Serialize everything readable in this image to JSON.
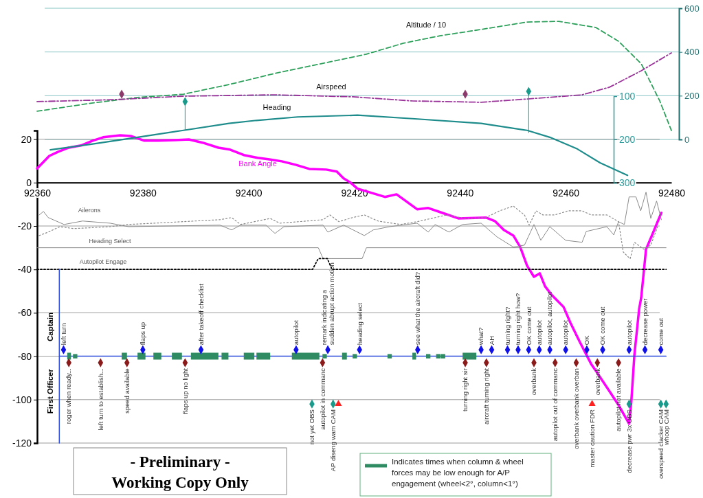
{
  "chart_data": [
    {
      "type": "line",
      "xlim": [
        92360,
        92480
      ],
      "ylim": [
        0,
        600
      ],
      "yticks": [
        0,
        200,
        400,
        600
      ],
      "grid": true,
      "tick_labels": "y",
      "series": [
        {
          "name": "Altitude / 10",
          "color": "#2ca05a",
          "line_style": "dashed",
          "x": [
            92360,
            92370.3,
            92379,
            92387.7,
            92396.3,
            92405,
            92413.7,
            92422.3,
            92429.3,
            92436.2,
            92444,
            92452.7,
            92458.7,
            92465.7,
            92470,
            92474.3,
            92477.8,
            92480
          ],
          "values": [
            129,
            166,
            192,
            207,
            251,
            302,
            346,
            390,
            440,
            474,
            503,
            537,
            540,
            512,
            449,
            346,
            176,
            41
          ]
        },
        {
          "name": "Airspeed",
          "color": "#993399",
          "line_style": "dashed",
          "x": [
            92360,
            92374.7,
            92387.7,
            92405,
            92419.7,
            92431,
            92444,
            92454.4,
            92463.1,
            92468.3,
            92474.3,
            92480
          ],
          "values": [
            173,
            182,
            198,
            204,
            195,
            176,
            170,
            188,
            204,
            239,
            314,
            396
          ]
        },
        {
          "color": "#1a9a8a",
          "x": [
            92388,
            92388,
            92420,
            92453,
            92453
          ],
          "values": [
            173,
            44,
            null,
            220,
            31
          ]
        },
        {
          "type": "scatter",
          "marker": "diamond",
          "color": "#8b3a6b",
          "x": [
            92376,
            92441
          ],
          "values": [
            207,
            207
          ]
        },
        {
          "type": "scatter",
          "marker": "diamond",
          "color": "#1a9a8a",
          "x": [
            92388,
            92453
          ],
          "values": [
            173,
            220
          ]
        }
      ]
    },
    {
      "type": "line",
      "xlim": [
        92360,
        92480
      ],
      "ylim": [
        300,
        100
      ],
      "yticks": [
        100,
        200,
        300
      ],
      "tick_labels": "y",
      "series": [
        {
          "name": "Heading",
          "color": "#1f8c8c",
          "x": [
            92362.5,
            92370.3,
            92379,
            92387.7,
            92396.3,
            92401.5,
            92409.3,
            92420.6,
            92431,
            92444,
            92452.7,
            92457,
            92462.2,
            92466.5,
            92471.7
          ],
          "values": [
            224,
            211,
            195,
            179,
            163,
            156,
            148,
            144,
            152,
            163,
            179,
            195,
            222,
            254,
            283
          ]
        }
      ]
    },
    {
      "type": "line",
      "xlim": [
        92360,
        92480
      ],
      "xticks": [
        92360,
        92380,
        92400,
        92420,
        92440,
        92460,
        92480
      ],
      "ylim": [
        -120,
        24
      ],
      "yticks": [
        -120,
        -100,
        -80,
        -60,
        -40,
        -20,
        0,
        20
      ],
      "grid": true,
      "legend": "bottom",
      "series": [
        {
          "name": "Bank Angle",
          "color": "#ff00ff",
          "x": [
            92360,
            92361.2,
            92362.3,
            92364,
            92366,
            92368.3,
            92370.5,
            92372.5,
            92375.7,
            92377.7,
            92380.3,
            92382.9,
            92386.1,
            92388.7,
            92391.3,
            92394.3,
            92396.5,
            92399.1,
            92401.7,
            92403.7,
            92406.3,
            92408.9,
            92411.5,
            92414.7,
            92416.7,
            92418,
            92419.3,
            92420.6,
            92423.2,
            92425.8,
            92428,
            92431.9,
            92434,
            92436.6,
            92439.7,
            92444.9,
            92446.6,
            92448.3,
            92450.1,
            92451.4,
            92452.7,
            92454,
            92455.1,
            92456.1,
            92457.4,
            92459.6,
            92460.9,
            92462.6,
            92464.8,
            92465.7,
            92468.3,
            92470,
            92472,
            92472.4,
            92473,
            92473.9,
            92474.3,
            92475.2,
            92476.1,
            92478.1
          ],
          "values": [
            6.5,
            9.5,
            12.3,
            14.2,
            16.1,
            17.1,
            19.3,
            20.9,
            21.8,
            21.5,
            19.3,
            19.3,
            19.6,
            19.9,
            18.4,
            16.1,
            15.2,
            12.7,
            11.4,
            10.8,
            9.8,
            8.2,
            6.3,
            6.0,
            5.1,
            1.9,
            0,
            -2.8,
            -4.7,
            -6.6,
            -5.4,
            -12.3,
            -11.7,
            -13.9,
            -16.5,
            -16.1,
            -17.7,
            -21.8,
            -24.4,
            -29.7,
            -38.3,
            -43.4,
            -41.8,
            -47.8,
            -51.9,
            -57.3,
            -64.6,
            -73.1,
            -83.5,
            -86.7,
            -96.2,
            -102.5,
            -111.1,
            -101.6,
            -79.4,
            -58.2,
            -52.8,
            -30.7,
            -25.6,
            -13.9
          ]
        },
        {
          "name": "Ailerons",
          "color": "#8a8a8a",
          "x": [
            92360.4,
            92361.2,
            92362.1,
            92365.1,
            92368.6,
            92373.8,
            92377.3,
            92394.6,
            92396.8,
            92398.5,
            92403.3,
            92405,
            92406.7,
            92414.1,
            92415,
            92418,
            92421.9,
            92423.6,
            92426.7,
            92431.9,
            92434,
            92435.3,
            92437.9,
            92440.5,
            92444,
            92447,
            92450.1,
            92452.2,
            92454,
            92455.3,
            92457,
            92460,
            92463.1,
            92463.9,
            92467.8,
            92469.1,
            92470,
            92471.1,
            92472,
            92473.3,
            92474.2,
            92475.2,
            92476.1,
            92477.2,
            92478.1
          ],
          "values": [
            -14.9,
            -13.3,
            -16.1,
            -19.3,
            -17.7,
            -18.7,
            -20.3,
            -19.6,
            -21.8,
            -19.6,
            -19.6,
            -23.4,
            -20.3,
            -19.6,
            -22.8,
            -19.6,
            -24.4,
            -21.8,
            -20.3,
            -18.7,
            -22.8,
            -19.3,
            -22.8,
            -19.3,
            -18.7,
            -25.0,
            -29.7,
            -28.8,
            -19.3,
            -26.6,
            -20.3,
            -26.6,
            -27.5,
            -22.5,
            -20.3,
            -24.1,
            -18.0,
            -19.3,
            -6.6,
            -6.6,
            -13.0,
            -4.4,
            -16.5,
            -8.5,
            -17.1
          ]
        },
        {
          "color": "#8a8a8a",
          "line_style": "dotted",
          "x": [
            92360.4,
            92362.1,
            92364.3,
            92366.9,
            92373.8,
            92377.3,
            92394.6,
            92396.8,
            92398.5,
            92404.1,
            92405.9,
            92414.1,
            92415.4,
            92417.1,
            92419.7,
            92421.9,
            92424.5,
            92428.8,
            92431.9,
            92437.5,
            92441,
            92444.9,
            92447.5,
            92450.1,
            92452.2,
            92453.1,
            92454.4,
            92455.7,
            92457.9,
            92460.5,
            92463.1,
            92464.8,
            92467.8,
            92470,
            92470.9,
            92472.2,
            92473,
            92474.8,
            92476.1,
            92477.4
          ],
          "values": [
            -24.4,
            -22.8,
            -20.3,
            -21.2,
            -20.3,
            -19.3,
            -17.1,
            -16.1,
            -19.3,
            -16.5,
            -18.7,
            -17.1,
            -14.9,
            -18.0,
            -16.1,
            -14.9,
            -17.7,
            -19.3,
            -18.0,
            -14.9,
            -16.5,
            -16.1,
            -13.0,
            -10.8,
            -14.9,
            -19.6,
            -13.0,
            -14.9,
            -14.9,
            -13.0,
            -13.0,
            -14.9,
            -14.9,
            -18.0,
            -32.0,
            -35.1,
            -27.5,
            -30.7,
            -28.8,
            -20.3
          ]
        },
        {
          "name": "Heading Select",
          "color": "#8a8a8a",
          "x": [
            92360,
            92413.2,
            92414.1,
            92421.5,
            92422.3,
            92479
          ],
          "values": [
            -30,
            -30,
            -35,
            -35,
            -30,
            -30
          ]
        },
        {
          "name": "Autopilot Engage",
          "color": "#000000",
          "line_style": "dotted",
          "x": [
            92360,
            92412.1,
            92413.2,
            92414.9,
            92415.8,
            92479
          ],
          "values": [
            -40,
            -40,
            -35,
            -35,
            -40,
            -40
          ]
        },
        {
          "color": "#2f4fe0",
          "x": [
            92364.2,
            92479
          ],
          "values": [
            -80,
            -80
          ]
        },
        {
          "color": "#2f4fe0",
          "x": [
            92364.2,
            92364.2
          ],
          "values": [
            -40,
            -120
          ]
        },
        {
          "name": "Indicates times when column & wheel forces may be low enough for A/P engagement (wheel<2°, column<1°)",
          "color": "#2e8b62",
          "x": [
            92365.7,
            92366.4,
            null,
            92376.0,
            92377.0,
            null,
            92379.0,
            92380.5,
            null,
            92382.0,
            92383.5,
            null,
            92385.5,
            92387.4,
            null,
            92389.1,
            92394.3,
            null,
            92394.9,
            92396.2,
            null,
            92399.1,
            92401.1,
            null,
            92401.5,
            92404.1,
            null,
            92408.2,
            92413.4,
            null,
            92417.7,
            92418.6,
            null,
            92431.0,
            92431.7,
            null,
            92440.5,
            92443.1
          ],
          "values": [
            -80,
            -80,
            null,
            -80,
            -80,
            null,
            -80,
            -80,
            null,
            -80,
            -80,
            null,
            -80,
            -80,
            null,
            -80,
            -80,
            null,
            -80,
            -80,
            null,
            -80,
            -80,
            null,
            -80,
            -80,
            null,
            -80,
            -80,
            null,
            -80,
            -80,
            null,
            -80,
            -80,
            null,
            -80,
            -80
          ]
        },
        {
          "type": "scatter",
          "marker": "square",
          "color": "#2e8b62",
          "x": [
            92367.2,
            92414.4,
            92420.1,
            92426.7,
            92434.0,
            92435.9,
            92436.8
          ],
          "values": [
            -80,
            -80,
            -80,
            -80,
            -80,
            -80,
            -80
          ]
        },
        {
          "type": "scatter",
          "marker": "diamond",
          "color": "#1010e8",
          "x": [
            92365,
            92380,
            92391,
            92409,
            92415,
            92421,
            92432,
            92444,
            92446,
            92449,
            92451,
            92453,
            92455,
            92457,
            92460,
            92464,
            92467,
            92472,
            92475,
            92478
          ],
          "values": [
            -77,
            -77,
            -77,
            -77,
            -77,
            -77,
            -77,
            -77,
            -77,
            -77,
            -77,
            -77,
            -77,
            -77,
            -77,
            -77,
            -77,
            -77,
            -77,
            -77
          ]
        },
        {
          "type": "scatter",
          "marker": "diamond",
          "color": "#8b1a1a",
          "x": [
            92366,
            92372,
            92377,
            92388,
            92414,
            92441,
            92445,
            92454,
            92458,
            92462,
            92466,
            92470
          ],
          "values": [
            -83,
            -83,
            -83,
            -83,
            -83,
            -83,
            -83,
            -83,
            -83,
            -83,
            -83,
            -83
          ]
        },
        {
          "type": "scatter",
          "marker": "diamond",
          "color": "#1a9a8a",
          "x": [
            92412,
            92416,
            92472,
            92478,
            92479
          ],
          "values": [
            -102,
            -102,
            -102,
            -102,
            -102
          ]
        },
        {
          "type": "scatter",
          "marker": "triangle",
          "color": "#ff2020",
          "x": [
            92417,
            92465
          ],
          "values": [
            -102,
            -102
          ]
        }
      ],
      "annotations": [
        "Captain",
        "First Officer",
        {
          "text": "left turn",
          "x": 92365,
          "y": -77
        },
        {
          "text": "flaps up",
          "x": 92380,
          "y": -77
        },
        {
          "text": "after takeoff checklist",
          "x": 92391,
          "y": -77
        },
        {
          "text": "autopilot",
          "x": 92409,
          "y": -77
        },
        {
          "text": "remark indicating a\nsudden abrupt action motion",
          "x": 92415,
          "y": -77
        },
        {
          "text": "heading select",
          "x": 92421,
          "y": -77
        },
        {
          "text": "see what the aircraft did?",
          "x": 92432,
          "y": -77
        },
        {
          "text": "what?",
          "x": 92444,
          "y": -77
        },
        {
          "text": "AH",
          "x": 92446,
          "y": -77
        },
        {
          "text": "turning right?",
          "x": 92449,
          "y": -77
        },
        {
          "text": "turning right how?",
          "x": 92451,
          "y": -77
        },
        {
          "text": "OK come out",
          "x": 92453,
          "y": -77
        },
        {
          "text": "autopilot",
          "x": 92455,
          "y": -77
        },
        {
          "text": "autopilot, autopilot",
          "x": 92457,
          "y": -77
        },
        {
          "text": "autopilot",
          "x": 92460,
          "y": -77
        },
        {
          "text": "OK",
          "x": 92464,
          "y": -77
        },
        {
          "text": "OK come out",
          "x": 92467,
          "y": -77
        },
        {
          "text": "autopilot",
          "x": 92472,
          "y": -77
        },
        {
          "text": "decrease power",
          "x": 92475,
          "y": -77
        },
        {
          "text": "come out",
          "x": 92478,
          "y": -77
        },
        {
          "text": "roger when ready...",
          "x": 92366,
          "y": -83
        },
        {
          "text": "left turn to establish...",
          "x": 92372,
          "y": -83
        },
        {
          "text": "speed available",
          "x": 92377,
          "y": -83
        },
        {
          "text": "flaps up no light",
          "x": 92388,
          "y": -83
        },
        {
          "text": "autopilot in commanc",
          "x": 92414,
          "y": -83
        },
        {
          "text": "turning right sir",
          "x": 92441,
          "y": -83
        },
        {
          "text": "aircraft turning right",
          "x": 92445,
          "y": -83
        },
        {
          "text": "overbank",
          "x": 92454,
          "y": -83
        },
        {
          "text": "autopilot out of commanc",
          "x": 92458,
          "y": -83
        },
        {
          "text": "overbank overbank overban",
          "x": 92462,
          "y": -83
        },
        {
          "text": "overbank",
          "x": 92466,
          "y": -83
        },
        {
          "text": "autopilot not available",
          "x": 92470,
          "y": -83
        },
        {
          "text": "not yet OBS",
          "x": 92412,
          "y": -102
        },
        {
          "text": "AP diseng warn CAM",
          "x": 92416,
          "y": -102
        },
        {
          "text": "master caution FDR",
          "x": 92465,
          "y": -102
        },
        {
          "text": "decrease pwr 3x OBS",
          "x": 92472,
          "y": -102
        },
        {
          "text": "overspeed clacker CAM",
          "x": 92478,
          "y": -102
        },
        {
          "text": "whoop CAM",
          "x": 92479,
          "y": -102
        },
        "- Preliminary -\nWorking Copy Only"
      ]
    }
  ]
}
